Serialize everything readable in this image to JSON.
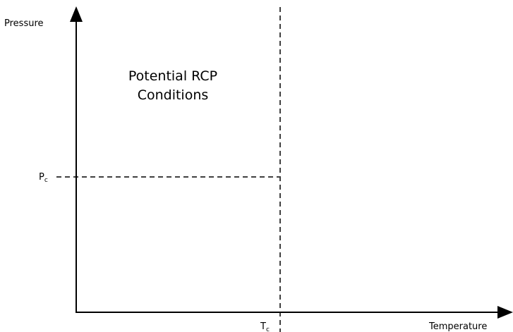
{
  "y_axis_label": "Pressure",
  "x_axis_label": "Temperature",
  "region_label_line1": "Potential RCP",
  "region_label_line2": "Conditions",
  "pc_main": "P",
  "pc_sub": "c",
  "tc_main": "T",
  "tc_sub": "c",
  "colors": {
    "line": "#000000",
    "background": "#ffffff"
  }
}
